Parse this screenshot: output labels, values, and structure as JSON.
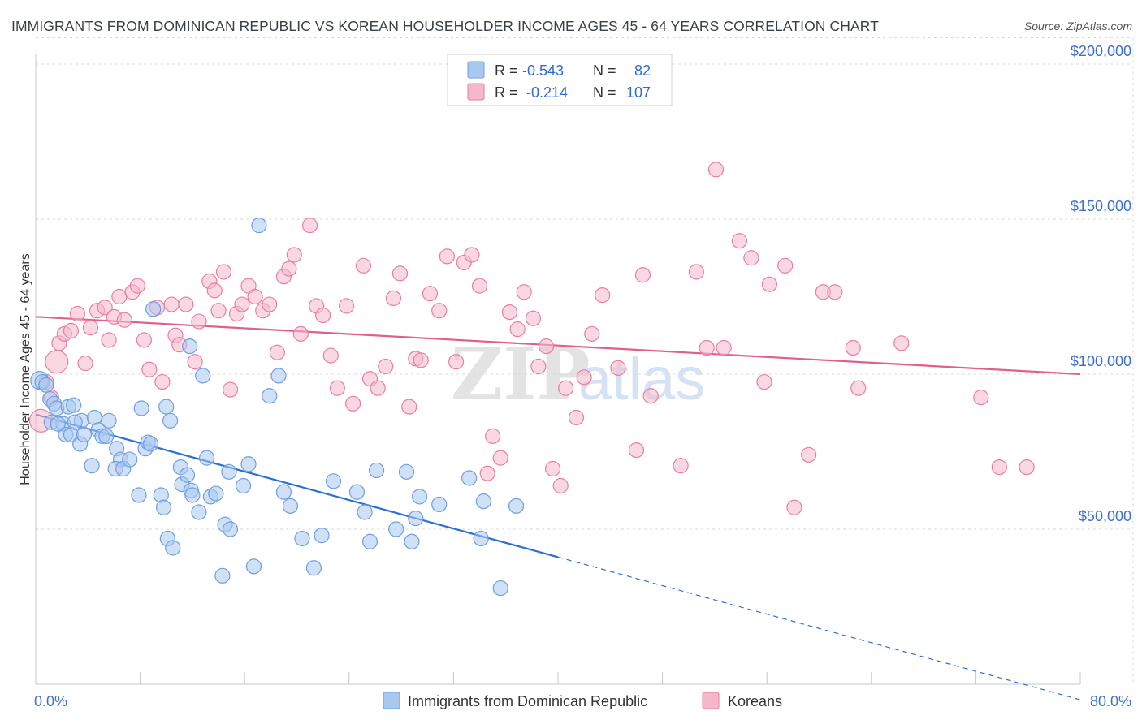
{
  "title": "IMMIGRANTS FROM DOMINICAN REPUBLIC VS KOREAN HOUSEHOLDER INCOME AGES 45 - 64 YEARS CORRELATION CHART",
  "source": "Source: ZipAtlas.com",
  "watermark": {
    "zip": "ZIP",
    "atlas": "atlas"
  },
  "colors": {
    "blue": "#6d9fe0",
    "blue_fill": "#a9c8f0",
    "blue_line": "#2b6fd4",
    "pink": "#e87ea0",
    "pink_fill": "#f5b8cb",
    "pink_line": "#e0608a",
    "tick": "#3d6fcc",
    "grid": "#d9d9d9"
  },
  "legend": {
    "rows": [
      {
        "r_label": "R =",
        "r_value": "-0.543",
        "n_label": "N =",
        "n_value": "82"
      },
      {
        "r_label": "R =",
        "r_value": "-0.214",
        "n_label": "N =",
        "n_value": "107"
      }
    ]
  },
  "chart_data": {
    "type": "scatter",
    "title": "IMMIGRANTS FROM DOMINICAN REPUBLIC VS KOREAN HOUSEHOLDER INCOME AGES 45 - 64 YEARS CORRELATION CHART",
    "xlabel": "",
    "ylabel": "Householder Income Ages 45 - 64 years",
    "xlim": [
      0,
      80
    ],
    "ylim": [
      0,
      210000
    ],
    "x_tick_labels": [
      "0.0%",
      "80.0%"
    ],
    "y_ticks": [
      50000,
      100000,
      150000,
      200000
    ],
    "y_tick_labels": [
      "$50,000",
      "$100,000",
      "$150,000",
      "$200,000"
    ],
    "grid": true,
    "legend_position": "top-center",
    "series": [
      {
        "name": "Immigrants from Dominican Republic",
        "color": "#6d9fe0",
        "trend": {
          "x": [
            0,
            40
          ],
          "y": [
            87000,
            41000
          ],
          "dashed_to": {
            "x": 80,
            "y": -5000
          }
        },
        "points": [
          [
            0.3,
            98000
          ],
          [
            0.5,
            97500
          ],
          [
            0.8,
            96500
          ],
          [
            1.1,
            92000
          ],
          [
            1.4,
            90500
          ],
          [
            1.6,
            89000
          ],
          [
            1.2,
            84500
          ],
          [
            2.1,
            84000
          ],
          [
            2.5,
            89500
          ],
          [
            2.9,
            90000
          ],
          [
            2.3,
            80500
          ],
          [
            2.7,
            80500
          ],
          [
            3.5,
            85000
          ],
          [
            3.4,
            77500
          ],
          [
            3.7,
            80500
          ],
          [
            4.5,
            86000
          ],
          [
            4.8,
            82000
          ],
          [
            5.1,
            80000
          ],
          [
            5.4,
            80000
          ],
          [
            5.6,
            85000
          ],
          [
            4.3,
            70500
          ],
          [
            6.2,
            76000
          ],
          [
            6.5,
            72500
          ],
          [
            6.1,
            69500
          ],
          [
            6.7,
            69500
          ],
          [
            7.2,
            72500
          ],
          [
            7.9,
            61000
          ],
          [
            8.1,
            89000
          ],
          [
            8.4,
            76000
          ],
          [
            8.6,
            78000
          ],
          [
            8.8,
            77500
          ],
          [
            9.0,
            121000
          ],
          [
            9.6,
            61000
          ],
          [
            9.8,
            57000
          ],
          [
            10.0,
            89500
          ],
          [
            10.3,
            85000
          ],
          [
            10.1,
            47000
          ],
          [
            10.5,
            44000
          ],
          [
            11.1,
            70000
          ],
          [
            11.2,
            64500
          ],
          [
            11.6,
            67500
          ],
          [
            11.9,
            62500
          ],
          [
            12.0,
            61000
          ],
          [
            12.5,
            55500
          ],
          [
            11.8,
            109000
          ],
          [
            12.8,
            99500
          ],
          [
            13.1,
            73000
          ],
          [
            13.4,
            60500
          ],
          [
            13.8,
            61500
          ],
          [
            14.3,
            35000
          ],
          [
            14.5,
            51500
          ],
          [
            14.9,
            50000
          ],
          [
            14.8,
            68500
          ],
          [
            15.9,
            64000
          ],
          [
            16.3,
            71000
          ],
          [
            16.7,
            38000
          ],
          [
            17.1,
            148000
          ],
          [
            17.9,
            93000
          ],
          [
            18.6,
            99500
          ],
          [
            19.0,
            62000
          ],
          [
            19.5,
            57500
          ],
          [
            20.4,
            47000
          ],
          [
            21.3,
            37500
          ],
          [
            21.9,
            48000
          ],
          [
            22.8,
            65500
          ],
          [
            24.6,
            62000
          ],
          [
            25.2,
            55500
          ],
          [
            25.6,
            46000
          ],
          [
            26.1,
            69000
          ],
          [
            27.6,
            50000
          ],
          [
            28.4,
            68500
          ],
          [
            28.8,
            46000
          ],
          [
            29.1,
            53500
          ],
          [
            29.4,
            60500
          ],
          [
            30.9,
            58000
          ],
          [
            33.2,
            66500
          ],
          [
            34.1,
            47000
          ],
          [
            34.3,
            59000
          ],
          [
            35.6,
            31000
          ],
          [
            36.8,
            57500
          ],
          [
            1.7,
            84000
          ],
          [
            3.0,
            84500
          ]
        ]
      },
      {
        "name": "Koreans",
        "color": "#e87ea0",
        "trend": {
          "x": [
            0,
            80
          ],
          "y": [
            118500,
            100000
          ]
        },
        "points": [
          [
            0.4,
            85000
          ],
          [
            0.8,
            97500
          ],
          [
            1.2,
            92500
          ],
          [
            1.6,
            104000
          ],
          [
            1.8,
            110000
          ],
          [
            2.2,
            113000
          ],
          [
            2.7,
            114000
          ],
          [
            3.2,
            119500
          ],
          [
            3.8,
            103500
          ],
          [
            4.2,
            115000
          ],
          [
            4.7,
            120500
          ],
          [
            5.3,
            121500
          ],
          [
            5.6,
            111000
          ],
          [
            6.0,
            118500
          ],
          [
            6.4,
            125000
          ],
          [
            6.8,
            117500
          ],
          [
            7.4,
            126500
          ],
          [
            7.8,
            128500
          ],
          [
            8.3,
            111000
          ],
          [
            8.7,
            101500
          ],
          [
            9.3,
            121500
          ],
          [
            9.7,
            97500
          ],
          [
            10.4,
            122500
          ],
          [
            10.7,
            112500
          ],
          [
            11.0,
            109500
          ],
          [
            11.5,
            122500
          ],
          [
            12.2,
            104000
          ],
          [
            12.5,
            117000
          ],
          [
            13.3,
            130000
          ],
          [
            13.7,
            127000
          ],
          [
            14.0,
            120500
          ],
          [
            14.4,
            133000
          ],
          [
            14.9,
            95000
          ],
          [
            15.4,
            119500
          ],
          [
            15.8,
            122500
          ],
          [
            16.3,
            128500
          ],
          [
            16.8,
            125000
          ],
          [
            17.4,
            120500
          ],
          [
            17.9,
            122500
          ],
          [
            18.5,
            107000
          ],
          [
            19.0,
            131500
          ],
          [
            19.4,
            134000
          ],
          [
            19.8,
            138500
          ],
          [
            20.3,
            113000
          ],
          [
            21.0,
            148000
          ],
          [
            21.5,
            122000
          ],
          [
            22.0,
            119000
          ],
          [
            22.6,
            106000
          ],
          [
            23.1,
            95500
          ],
          [
            23.8,
            122000
          ],
          [
            24.3,
            90500
          ],
          [
            25.1,
            135000
          ],
          [
            25.6,
            98500
          ],
          [
            26.2,
            95500
          ],
          [
            26.8,
            102500
          ],
          [
            27.4,
            124500
          ],
          [
            27.9,
            132500
          ],
          [
            28.6,
            89500
          ],
          [
            29.1,
            105000
          ],
          [
            29.5,
            104500
          ],
          [
            30.2,
            126000
          ],
          [
            30.9,
            120500
          ],
          [
            31.5,
            138000
          ],
          [
            32.2,
            104000
          ],
          [
            32.8,
            136000
          ],
          [
            33.4,
            138500
          ],
          [
            34.0,
            128500
          ],
          [
            34.6,
            68000
          ],
          [
            35.0,
            80000
          ],
          [
            35.6,
            73000
          ],
          [
            36.3,
            120000
          ],
          [
            36.9,
            114500
          ],
          [
            37.4,
            126500
          ],
          [
            38.1,
            118000
          ],
          [
            38.5,
            102500
          ],
          [
            39.1,
            109000
          ],
          [
            39.6,
            69500
          ],
          [
            40.2,
            64000
          ],
          [
            40.6,
            95500
          ],
          [
            41.4,
            86000
          ],
          [
            42.0,
            99000
          ],
          [
            42.6,
            113000
          ],
          [
            43.4,
            125500
          ],
          [
            44.6,
            102000
          ],
          [
            46.0,
            75500
          ],
          [
            46.5,
            132000
          ],
          [
            47.1,
            93000
          ],
          [
            49.4,
            70500
          ],
          [
            50.6,
            133000
          ],
          [
            51.4,
            108500
          ],
          [
            52.1,
            166000
          ],
          [
            52.7,
            108500
          ],
          [
            53.9,
            143000
          ],
          [
            54.8,
            137500
          ],
          [
            55.8,
            97500
          ],
          [
            56.2,
            129000
          ],
          [
            57.4,
            135000
          ],
          [
            58.1,
            57000
          ],
          [
            59.2,
            74000
          ],
          [
            60.3,
            126500
          ],
          [
            61.2,
            126500
          ],
          [
            62.6,
            108500
          ],
          [
            63.0,
            95500
          ],
          [
            66.3,
            110000
          ],
          [
            72.4,
            92500
          ],
          [
            73.8,
            70000
          ],
          [
            75.9,
            70000
          ]
        ]
      }
    ]
  },
  "bottom_legend": [
    {
      "label": "Immigrants from Dominican Republic"
    },
    {
      "label": "Koreans"
    }
  ]
}
